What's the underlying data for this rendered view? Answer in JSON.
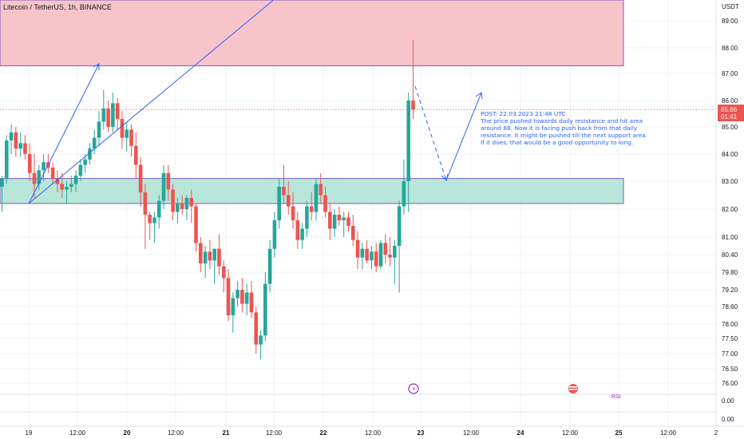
{
  "header": {
    "title": "Litecoin / TetherUS, 1h, BINANCE"
  },
  "price_axis": {
    "currency": "USDT",
    "ticks": [
      "89.00",
      "88.00",
      "87.00",
      "86.00",
      "85.00",
      "84.00",
      "83.00",
      "82.00",
      "81.00",
      "80.40",
      "79.80",
      "79.20",
      "78.60",
      "78.00",
      "77.50",
      "77.00",
      "76.50",
      "76.00"
    ],
    "current_price": "85.66",
    "countdown": "01:41"
  },
  "indicator_axis": {
    "ticks": [
      "0.00",
      "0.00"
    ],
    "label": "RSI"
  },
  "time_axis": {
    "labels": [
      "19",
      "12:00",
      "20",
      "12:00",
      "21",
      "12:00",
      "22",
      "12:00",
      "23",
      "12:00",
      "24",
      "12:00",
      "25",
      "12:00",
      "2"
    ]
  },
  "annotation": {
    "lines": [
      "POST: 22.03.2023 21:48 UTC",
      "The price pushed towards daily resistance and hit area",
      "around 88. Now it is facing push back from that daily",
      "resistance. It might be pushed till the next support area.",
      "If it does, that would be a good opportunity to long."
    ]
  },
  "colors": {
    "up": "#26a69a",
    "down": "#ef5350",
    "resistance_fill": "#f7c5c9",
    "support_fill": "#b9e6da",
    "zone_border": "#7e57c2",
    "drawing": "#2962ff",
    "price_line": "#ef5350"
  },
  "chart_data": {
    "type": "candlestick",
    "title": "Litecoin / TetherUS, 1h, BINANCE",
    "ylabel": "USDT",
    "ylim": [
      75.8,
      89.5
    ],
    "zones": [
      {
        "name": "resistance",
        "low": 87.3,
        "high": 89.6
      },
      {
        "name": "support",
        "low": 82.2,
        "high": 83.1
      }
    ],
    "price_line": 85.66,
    "candles": [
      [
        82.8,
        83.2,
        81.9,
        83.1
      ],
      [
        83.1,
        84.7,
        82.9,
        84.5
      ],
      [
        84.5,
        85.1,
        84.0,
        84.8
      ],
      [
        84.8,
        85.0,
        83.9,
        84.2
      ],
      [
        84.2,
        84.8,
        83.9,
        84.4
      ],
      [
        84.4,
        84.7,
        83.8,
        84.0
      ],
      [
        84.0,
        84.4,
        83.0,
        83.3
      ],
      [
        83.3,
        84.0,
        82.4,
        82.9
      ],
      [
        82.9,
        83.6,
        82.7,
        83.4
      ],
      [
        83.4,
        84.0,
        83.0,
        83.7
      ],
      [
        83.7,
        84.0,
        83.3,
        83.5
      ],
      [
        83.5,
        83.7,
        82.9,
        83.1
      ],
      [
        83.1,
        83.4,
        82.6,
        82.9
      ],
      [
        82.9,
        83.3,
        82.4,
        82.7
      ],
      [
        82.7,
        83.0,
        82.2,
        82.8
      ],
      [
        82.8,
        83.2,
        82.6,
        82.9
      ],
      [
        82.9,
        83.4,
        82.6,
        83.2
      ],
      [
        83.2,
        83.8,
        83.0,
        83.6
      ],
      [
        83.6,
        84.0,
        83.3,
        83.8
      ],
      [
        83.8,
        84.4,
        83.6,
        84.2
      ],
      [
        84.2,
        84.9,
        84.0,
        84.6
      ],
      [
        84.6,
        85.6,
        84.3,
        85.2
      ],
      [
        85.2,
        86.4,
        84.9,
        85.7
      ],
      [
        85.7,
        86.0,
        84.8,
        85.0
      ],
      [
        85.0,
        86.3,
        84.8,
        85.9
      ],
      [
        85.9,
        86.1,
        84.9,
        85.3
      ],
      [
        85.3,
        85.6,
        84.2,
        84.6
      ],
      [
        84.6,
        85.2,
        84.1,
        84.9
      ],
      [
        84.9,
        85.1,
        83.9,
        84.3
      ],
      [
        84.3,
        84.8,
        83.1,
        83.6
      ],
      [
        83.6,
        83.9,
        82.1,
        82.6
      ],
      [
        82.6,
        82.9,
        80.6,
        81.8
      ],
      [
        81.8,
        81.9,
        80.9,
        81.5
      ],
      [
        81.5,
        81.9,
        80.8,
        81.7
      ],
      [
        81.7,
        82.5,
        81.3,
        82.3
      ],
      [
        82.3,
        83.6,
        82.0,
        83.3
      ],
      [
        83.3,
        83.6,
        82.3,
        82.7
      ],
      [
        82.7,
        82.9,
        81.6,
        81.9
      ],
      [
        81.9,
        82.4,
        81.5,
        82.2
      ],
      [
        82.2,
        82.5,
        81.8,
        82.0
      ],
      [
        82.0,
        82.5,
        81.6,
        82.4
      ],
      [
        82.4,
        82.7,
        81.5,
        82.1
      ],
      [
        82.1,
        82.2,
        80.5,
        80.8
      ],
      [
        80.8,
        81.0,
        79.8,
        80.1
      ],
      [
        80.1,
        80.7,
        79.6,
        80.5
      ],
      [
        80.5,
        80.9,
        79.9,
        80.2
      ],
      [
        80.2,
        80.6,
        79.4,
        80.6
      ],
      [
        80.6,
        81.1,
        79.7,
        80.0
      ],
      [
        80.0,
        80.2,
        79.1,
        79.6
      ],
      [
        79.6,
        79.9,
        78.1,
        78.3
      ],
      [
        78.3,
        79.1,
        77.7,
        78.9
      ],
      [
        78.9,
        79.5,
        78.6,
        79.2
      ],
      [
        79.2,
        79.6,
        78.4,
        78.7
      ],
      [
        78.7,
        79.4,
        78.3,
        79.1
      ],
      [
        79.1,
        79.5,
        78.2,
        78.4
      ],
      [
        78.4,
        78.6,
        77.0,
        77.3
      ],
      [
        77.3,
        77.8,
        76.8,
        77.6
      ],
      [
        77.6,
        79.8,
        77.4,
        79.4
      ],
      [
        79.4,
        80.9,
        79.1,
        80.6
      ],
      [
        80.6,
        81.9,
        80.3,
        81.6
      ],
      [
        81.6,
        83.1,
        81.3,
        82.8
      ],
      [
        82.8,
        83.6,
        82.2,
        82.5
      ],
      [
        82.5,
        83.0,
        81.8,
        82.1
      ],
      [
        82.1,
        82.6,
        81.3,
        81.6
      ],
      [
        81.6,
        81.9,
        80.6,
        80.9
      ],
      [
        80.9,
        81.5,
        80.6,
        81.3
      ],
      [
        81.3,
        82.3,
        81.0,
        82.1
      ],
      [
        82.1,
        82.6,
        81.6,
        81.9
      ],
      [
        81.9,
        83.1,
        81.6,
        82.9
      ],
      [
        82.9,
        83.3,
        82.2,
        82.5
      ],
      [
        82.5,
        82.8,
        81.7,
        81.9
      ],
      [
        81.9,
        82.2,
        80.9,
        81.3
      ],
      [
        81.3,
        82.0,
        81.0,
        81.8
      ],
      [
        81.8,
        82.1,
        81.4,
        81.6
      ],
      [
        81.6,
        81.9,
        81.0,
        81.7
      ],
      [
        81.7,
        81.9,
        81.2,
        81.4
      ],
      [
        81.4,
        81.8,
        80.7,
        80.9
      ],
      [
        80.9,
        81.2,
        79.9,
        80.3
      ],
      [
        80.3,
        80.8,
        79.9,
        80.6
      ],
      [
        80.6,
        80.9,
        80.1,
        80.2
      ],
      [
        80.2,
        80.7,
        79.9,
        80.5
      ],
      [
        80.5,
        80.8,
        79.8,
        80.0
      ],
      [
        80.0,
        80.9,
        79.9,
        80.8
      ],
      [
        80.8,
        81.1,
        80.1,
        80.4
      ],
      [
        80.4,
        81.0,
        80.0,
        80.3
      ],
      [
        80.3,
        80.9,
        79.4,
        80.7
      ],
      [
        80.7,
        82.3,
        79.1,
        82.1
      ],
      [
        82.1,
        83.8,
        81.8,
        83.0
      ],
      [
        83.0,
        86.3,
        81.9,
        86.0
      ],
      [
        86.0,
        88.3,
        85.3,
        85.66
      ]
    ]
  }
}
